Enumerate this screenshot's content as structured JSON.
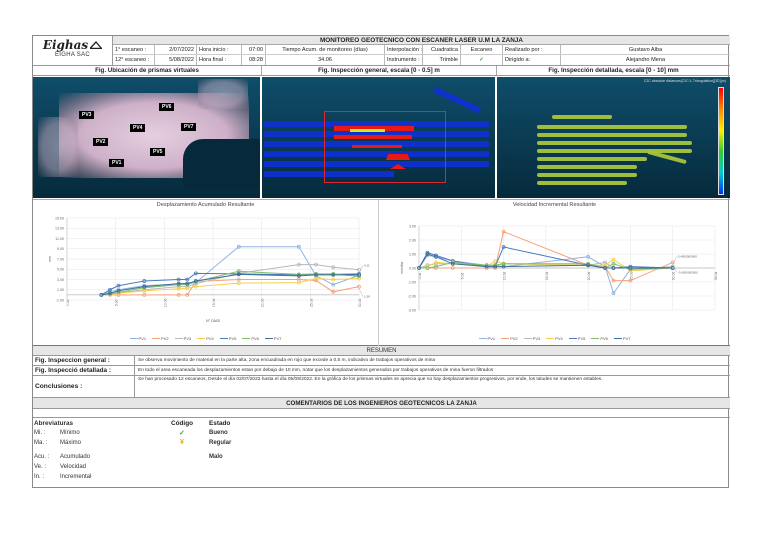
{
  "header": {
    "title": "MONITOREO GEOTECNICO CON ESCANER LASER U.M LA ZANJA",
    "logo_text": "Eighas",
    "company": "EIGHA SAC",
    "row1": {
      "scan_label": "1° escaneo :",
      "scan_date": "2/07/2022",
      "hour_label": "Hora inicio :",
      "hour_value": "07:00",
      "time_label": "Tiempo Acum. de monitoreo (días)",
      "interp_label": "Interpolación :",
      "interp_value": "Cuadratica",
      "escaneo_label": "Escaneo",
      "made_by_label": "Realizado por :",
      "made_by_value": "Gustavo Alba"
    },
    "row2": {
      "scan_label": "12° escaneo :",
      "scan_date": "5/08/2022",
      "hour_label": "Hora final :",
      "hour_value": "08:28",
      "time_value": "34.06",
      "instrument_label": "Instrumento :",
      "instrument_value": "Trimble",
      "escaneo_status": "✓",
      "directed_label": "Dirigido a:",
      "directed_value": "Alejandro Mena"
    }
  },
  "figures": {
    "fig1_title": "Fig. Ubicación de prismas virtuales",
    "fig2_title": "Fig. Inspección general, escala [0 - 0.5] m",
    "fig3_title": "Fig. Inspección detallada, escala [0 - 10] mm",
    "prisms": [
      "PV1",
      "PV2",
      "PV3",
      "PV4",
      "PV5",
      "PV6",
      "PV7"
    ],
    "scale_title": "C2C absolute distances[C2C:1-Triangulation]{3D}(m)"
  },
  "chart_data": [
    {
      "type": "line",
      "title": "Desplazamiento Acumulado Resultante",
      "xlabel": "N° DÍAS",
      "ylabel": "mm",
      "ylim": [
        -1.0,
        15.0
      ],
      "yticks": [
        "15.00",
        "13.00",
        "11.00",
        "9.00",
        "7.00",
        "5.00",
        "3.00",
        "1.00",
        "-1.00"
      ],
      "xticks": [
        "0.0d",
        "5.0d",
        "10.0d",
        "15.0d",
        "20.0d",
        "25.0d",
        "30.0d"
      ],
      "x": [
        4,
        5,
        6,
        9,
        13,
        14,
        15,
        20,
        27,
        29,
        31,
        34
      ],
      "annotations": [
        "4.11",
        "1.58"
      ],
      "series": [
        {
          "name": "PV1",
          "color": "#8fb4e3",
          "values": [
            0,
            0.6,
            1.0,
            1.8,
            2.1,
            2.2,
            2.4,
            9.4,
            9.4,
            3.7,
            2.0,
            3.8
          ]
        },
        {
          "name": "PV2",
          "color": "#f4a27a",
          "values": [
            0,
            0,
            0,
            0,
            0,
            0,
            2.6,
            3.0,
            3.0,
            2.8,
            0.6,
            1.6
          ]
        },
        {
          "name": "PV3",
          "color": "#b8b8b8",
          "values": [
            0,
            0.2,
            0.4,
            1.0,
            1.6,
            1.6,
            2.2,
            4.2,
            5.9,
            5.9,
            5.4,
            4.9
          ]
        },
        {
          "name": "PV4",
          "color": "#f6cf4f",
          "values": [
            0,
            0.1,
            0.3,
            0.8,
            1.2,
            1.3,
            1.6,
            2.3,
            2.4,
            3.2,
            3.0,
            3.2
          ]
        },
        {
          "name": "PV5",
          "color": "#4a78c2",
          "values": [
            0,
            1.0,
            1.8,
            2.7,
            3.0,
            3.0,
            4.2,
            4.1,
            3.9,
            4.0,
            4.0,
            4.1
          ]
        },
        {
          "name": "PV6",
          "color": "#7fbf6a",
          "values": [
            0,
            0.2,
            0.5,
            1.4,
            2.0,
            2.0,
            2.6,
            4.6,
            4.0,
            4.1,
            4.1,
            3.6
          ]
        },
        {
          "name": "PV7",
          "color": "#3f6f9a",
          "values": [
            0,
            0.3,
            0.8,
            1.6,
            2.2,
            2.2,
            2.7,
            4.0,
            3.7,
            3.9,
            3.9,
            3.9
          ]
        }
      ]
    },
    {
      "type": "line",
      "title": "Velocidad Incremental Resultante",
      "xlabel": "",
      "ylabel": "mm/día",
      "ylim": [
        -3.0,
        3.0
      ],
      "yticks": [
        "3.00",
        "2.00",
        "1.00",
        "0.00",
        "-1.00",
        "-2.00",
        "-3.00"
      ],
      "xticks": [
        "0.0d",
        "5.0d",
        "10.0d",
        "15.0d",
        "20.0d",
        "25.0d",
        "30.0d",
        "35.0d"
      ],
      "x": [
        0,
        1,
        2,
        4,
        8,
        9,
        10,
        20,
        22,
        23,
        25,
        30
      ],
      "annotations": [
        "0.4000000000",
        "-0.0000000000"
      ],
      "series": [
        {
          "name": "PV1",
          "color": "#8fb4e3",
          "values": [
            0,
            0.9,
            0.8,
            0.5,
            0.2,
            0.2,
            0.1,
            0.8,
            0.1,
            -1.8,
            -0.1,
            0.1
          ]
        },
        {
          "name": "PV2",
          "color": "#f4a27a",
          "values": [
            0,
            0,
            0,
            0,
            0,
            0,
            2.6,
            0.2,
            0.1,
            -0.9,
            -0.9,
            0.4
          ]
        },
        {
          "name": "PV3",
          "color": "#b8b8b8",
          "values": [
            0,
            0.2,
            0.3,
            0.3,
            0.2,
            0.2,
            0.3,
            0.2,
            0.4,
            0.0,
            0.0,
            0.0
          ]
        },
        {
          "name": "PV4",
          "color": "#f6cf4f",
          "values": [
            0,
            0.1,
            0.4,
            0.3,
            0.1,
            0.5,
            0.3,
            0.2,
            0.2,
            0.6,
            -0.2,
            0.0
          ]
        },
        {
          "name": "PV5",
          "color": "#4a78c2",
          "values": [
            0,
            1.1,
            0.9,
            0.5,
            0.1,
            0.1,
            1.5,
            0.2,
            0.0,
            0.0,
            0.1,
            0.0
          ]
        },
        {
          "name": "PV6",
          "color": "#7fbf6a",
          "values": [
            0,
            0.0,
            0.1,
            0.4,
            0.2,
            0.2,
            0.3,
            0.3,
            0.0,
            0.3,
            -0.1,
            0.0
          ]
        },
        {
          "name": "PV7",
          "color": "#3f6f9a",
          "values": [
            0,
            1.0,
            0.8,
            0.3,
            0.1,
            0.1,
            0.1,
            0.2,
            0.0,
            0.0,
            0.0,
            0.0
          ]
        }
      ]
    }
  ],
  "summary": {
    "title": "RESUMEN",
    "general_label": "Fig. Inspeccion general :",
    "general_text": "Se observa movimiento de material en la parte alta, zona encuadrada en rojo que excede a 0.5 m, indicativo de trabajos operativos de mina",
    "detailed_label": "Fig. Inspecció detallada :",
    "detailed_text": "En todo el area escaneada los desplazamientos estan por debajo de 10 mm, notar que los desplazamientos generados por trabajos operativos de mina fueron filtrados",
    "conclusions_label": "Conclusiones :",
    "conclusions_text": "Se han procesado 12 escaneos, Desde el día 02/07/2022 hasta el día 05/08/2022. En la gráfica de los prismas virtuales se aprecia que no hay desplazamientos progresivos, por ende, los taludes se mantienen estables."
  },
  "comments": {
    "title": "COMENTARIOS DE LOS INGENIEROS GEOTECNICOS LA ZANJA"
  },
  "legend": {
    "abbr_title": "Abreviaturas",
    "abbr": [
      {
        "key": "Mi. :",
        "value": "Mínimo"
      },
      {
        "key": "Ma. :",
        "value": "Máximo"
      },
      {
        "key": "Acu. :",
        "value": "Acumulado"
      },
      {
        "key": "Ve. :",
        "value": "Velocidad"
      },
      {
        "key": "In. :",
        "value": "Incremental"
      }
    ],
    "code_title": "Código",
    "state_title": "Estado",
    "codes": [
      {
        "symbol": "✓",
        "color": "#3aa63a",
        "state": "Bueno"
      },
      {
        "symbol": "¥",
        "color": "#e8b500",
        "state": "Regular"
      },
      {
        "symbol": "",
        "color": "#d33",
        "state": "Malo"
      }
    ]
  }
}
